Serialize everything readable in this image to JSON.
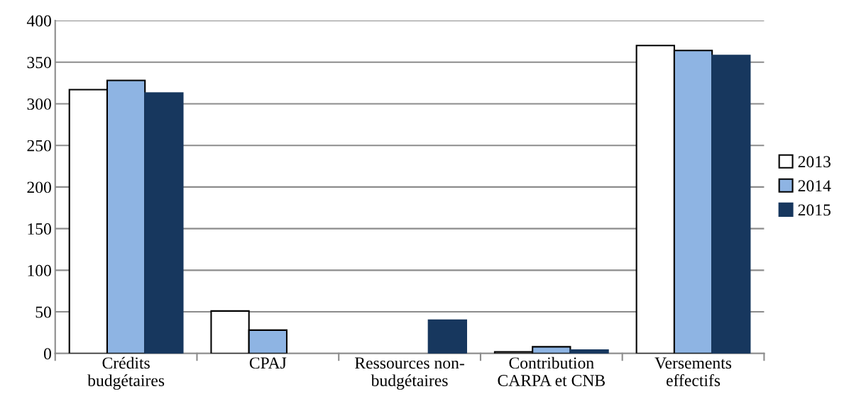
{
  "chart_data": {
    "type": "bar",
    "categories": [
      "Crédits\nbudgétaires",
      "CPAJ",
      "Ressources non-\nbudgétaires",
      "Contribution\nCARPA et CNB",
      "Versements\neffectifs"
    ],
    "series": [
      {
        "name": "2013",
        "color": "#ffffff",
        "values": [
          317,
          51,
          null,
          2,
          370
        ]
      },
      {
        "name": "2014",
        "color": "#8eb4e3",
        "values": [
          328,
          28,
          null,
          8,
          364
        ]
      },
      {
        "name": "2015",
        "color": "#17375e",
        "values": [
          313,
          null,
          40,
          4,
          358
        ]
      }
    ],
    "ylim": [
      0,
      400
    ],
    "yticks": [
      0,
      50,
      100,
      150,
      200,
      250,
      300,
      350,
      400
    ],
    "grid": "y",
    "legend": "right"
  }
}
